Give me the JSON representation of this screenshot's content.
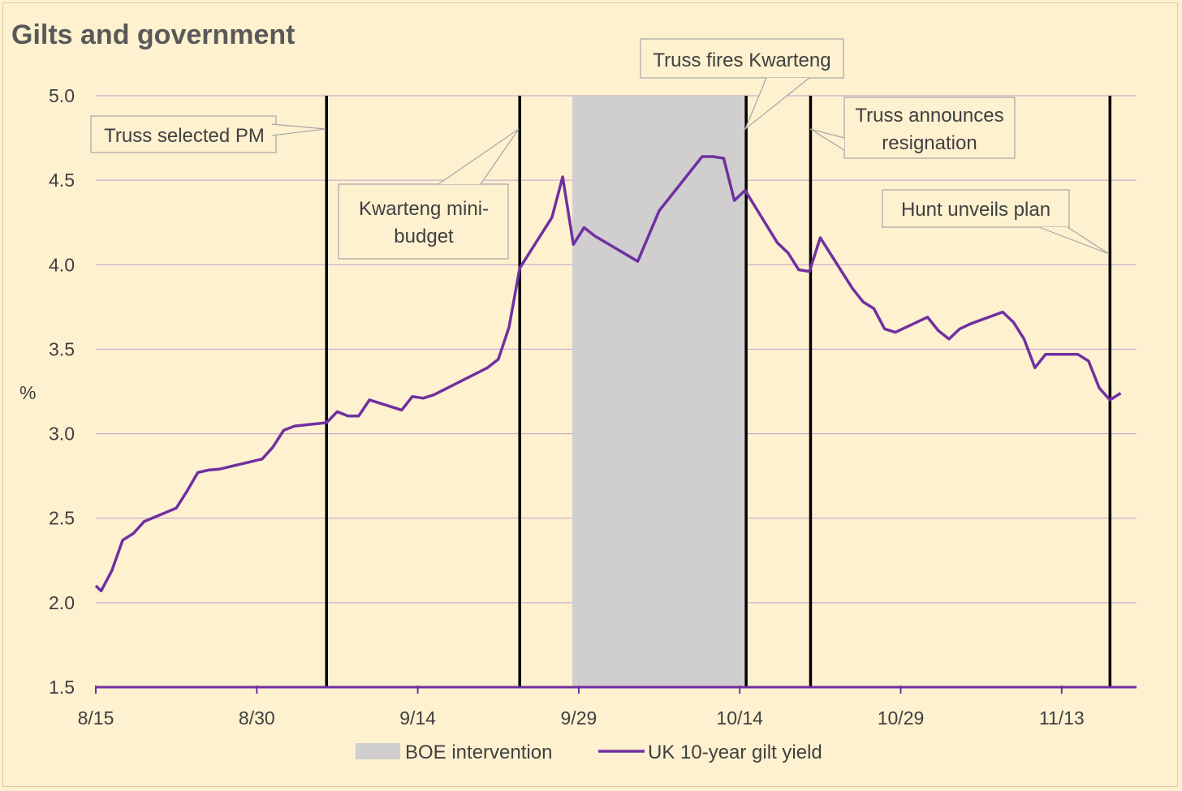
{
  "chart_data": {
    "type": "line",
    "title": "Gilts and government",
    "ylabel": "%",
    "xlabel": "",
    "ylim": [
      1.5,
      5.0
    ],
    "yticks": [
      "1.5",
      "2.0",
      "2.5",
      "3.0",
      "3.5",
      "4.0",
      "4.5",
      "5.0"
    ],
    "xticks": [
      "8/15",
      "8/30",
      "9/14",
      "9/29",
      "10/14",
      "10/29",
      "11/13"
    ],
    "grid": true,
    "legend_position": "bottom",
    "colors": {
      "line": "#7030A0",
      "shade": "#D0CECE",
      "event": "#000000",
      "grid": "#C39BD3",
      "background": "#FEF1D0"
    },
    "shaded_range": {
      "name": "BOE intervention",
      "from_day": 44.4,
      "to_day": 60.6
    },
    "series": [
      {
        "name": "UK 10-year gilt yield",
        "points": [
          [
            0,
            2.1
          ],
          [
            0.5,
            2.07
          ],
          [
            1.5,
            2.19
          ],
          [
            2.5,
            2.37
          ],
          [
            3.5,
            2.41
          ],
          [
            4.5,
            2.48
          ],
          [
            7.5,
            2.56
          ],
          [
            8.5,
            2.66
          ],
          [
            9.5,
            2.77
          ],
          [
            10.5,
            2.785
          ],
          [
            11.5,
            2.79
          ],
          [
            15.5,
            2.85
          ],
          [
            16.5,
            2.92
          ],
          [
            17.5,
            3.02
          ],
          [
            18.5,
            3.045
          ],
          [
            21.5,
            3.065
          ],
          [
            22.5,
            3.13
          ],
          [
            23.5,
            3.105
          ],
          [
            24.5,
            3.105
          ],
          [
            25.5,
            3.2
          ],
          [
            28.5,
            3.14
          ],
          [
            29.5,
            3.22
          ],
          [
            30.5,
            3.21
          ],
          [
            31.5,
            3.23
          ],
          [
            36.5,
            3.39
          ],
          [
            37.5,
            3.44
          ],
          [
            38.5,
            3.63
          ],
          [
            39.5,
            3.98
          ],
          [
            42.5,
            4.28
          ],
          [
            43.5,
            4.52
          ],
          [
            44.5,
            4.12
          ],
          [
            45.5,
            4.22
          ],
          [
            46.5,
            4.17
          ],
          [
            50.5,
            4.02
          ],
          [
            52.5,
            4.32
          ],
          [
            53.5,
            4.4
          ],
          [
            56.5,
            4.64
          ],
          [
            57.5,
            4.64
          ],
          [
            58.5,
            4.63
          ],
          [
            59.5,
            4.38
          ],
          [
            60.5,
            4.44
          ],
          [
            63.5,
            4.13
          ],
          [
            64.5,
            4.07
          ],
          [
            65.5,
            3.97
          ],
          [
            66.5,
            3.96
          ],
          [
            67.5,
            4.16
          ],
          [
            70.5,
            3.86
          ],
          [
            71.5,
            3.78
          ],
          [
            72.5,
            3.74
          ],
          [
            73.5,
            3.62
          ],
          [
            74.5,
            3.6
          ],
          [
            77.5,
            3.69
          ],
          [
            78.5,
            3.61
          ],
          [
            79.5,
            3.56
          ],
          [
            80.5,
            3.62
          ],
          [
            81.5,
            3.65
          ],
          [
            84.5,
            3.72
          ],
          [
            85.5,
            3.66
          ],
          [
            86.5,
            3.56
          ],
          [
            87.5,
            3.39
          ],
          [
            88.5,
            3.47
          ],
          [
            91.5,
            3.47
          ],
          [
            92.5,
            3.43
          ],
          [
            93.5,
            3.27
          ],
          [
            94.5,
            3.2
          ],
          [
            95.5,
            3.24
          ]
        ]
      }
    ],
    "events": [
      {
        "day": 21.5,
        "label": "Truss selected PM"
      },
      {
        "day": 39.5,
        "label": "Kwarteng mini-budget"
      },
      {
        "day": 60.6,
        "label": "Truss fires Kwarteng"
      },
      {
        "day": 66.6,
        "label": "Truss announces resignation"
      },
      {
        "day": 94.5,
        "label": "Hunt unveils plan"
      }
    ]
  },
  "annotations": {
    "truss_selected": [
      "Truss selected PM"
    ],
    "mini_budget": [
      "Kwarteng mini-",
      "budget"
    ],
    "fires": [
      "Truss fires Kwarteng"
    ],
    "resignation": [
      "Truss announces",
      "resignation"
    ],
    "hunt": [
      "Hunt unveils plan"
    ]
  },
  "legend": {
    "shade_label": "BOE intervention",
    "line_label": "UK 10-year gilt yield"
  }
}
